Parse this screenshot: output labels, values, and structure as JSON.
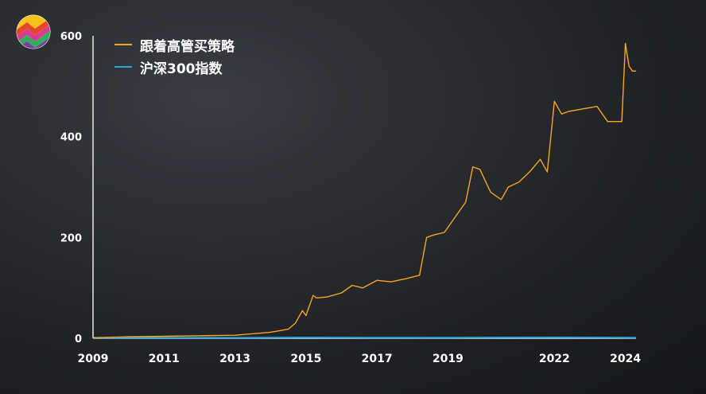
{
  "chart_data": {
    "type": "line",
    "title": "",
    "xlabel": "",
    "ylabel": "",
    "xlim": [
      2009.0,
      2024.3
    ],
    "ylim": [
      0,
      600
    ],
    "x_ticks": [
      2009,
      2011,
      2013,
      2015,
      2017,
      2019,
      2022,
      2024
    ],
    "y_ticks": [
      0,
      200,
      400,
      600
    ],
    "legend_position": "top-left",
    "grid": false,
    "series": [
      {
        "name": "跟着高管买策略",
        "color": "#f5a623",
        "x": [
          2009.0,
          2010.0,
          2011.0,
          2012.0,
          2013.0,
          2013.5,
          2014.0,
          2014.5,
          2014.7,
          2014.9,
          2015.0,
          2015.2,
          2015.3,
          2015.6,
          2016.0,
          2016.3,
          2016.6,
          2017.0,
          2017.4,
          2017.8,
          2018.2,
          2018.4,
          2018.6,
          2018.9,
          2019.2,
          2019.5,
          2019.7,
          2019.9,
          2020.2,
          2020.5,
          2020.7,
          2021.0,
          2021.3,
          2021.6,
          2021.8,
          2022.0,
          2022.2,
          2022.4,
          2022.8,
          2023.2,
          2023.5,
          2023.9,
          2024.0,
          2024.1,
          2024.2,
          2024.3
        ],
        "values": [
          1,
          3,
          4,
          5,
          6,
          9,
          12,
          18,
          30,
          55,
          45,
          85,
          80,
          82,
          90,
          105,
          100,
          115,
          112,
          118,
          125,
          200,
          205,
          210,
          240,
          270,
          340,
          335,
          290,
          275,
          300,
          310,
          330,
          355,
          330,
          470,
          445,
          450,
          455,
          460,
          430,
          430,
          585,
          540,
          530,
          530
        ]
      },
      {
        "name": "沪深300指数",
        "color": "#2aa7e0",
        "x": [
          2009.0,
          2011.0,
          2013.0,
          2015.0,
          2017.0,
          2019.0,
          2022.0,
          2024.3
        ],
        "values": [
          1.0,
          0.9,
          0.9,
          1.6,
          1.3,
          1.3,
          1.7,
          1.2
        ]
      }
    ]
  }
}
